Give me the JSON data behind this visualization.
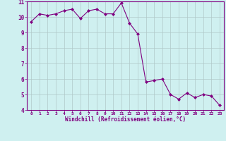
{
  "x": [
    0,
    1,
    2,
    3,
    4,
    5,
    6,
    7,
    8,
    9,
    10,
    11,
    12,
    13,
    14,
    15,
    16,
    17,
    18,
    19,
    20,
    21,
    22,
    23
  ],
  "y": [
    9.7,
    10.2,
    10.1,
    10.2,
    10.4,
    10.5,
    9.9,
    10.4,
    10.5,
    10.2,
    10.2,
    10.9,
    9.6,
    8.9,
    5.8,
    5.9,
    6.0,
    5.0,
    4.7,
    5.1,
    4.8,
    5.0,
    4.9,
    4.3
  ],
  "line_color": "#800080",
  "marker": "D",
  "marker_size": 2,
  "bg_color": "#cff0f0",
  "grid_color": "#b0c8c8",
  "xlabel": "Windchill (Refroidissement éolien,°C)",
  "xlim": [
    -0.5,
    23.5
  ],
  "ylim": [
    4,
    11
  ],
  "yticks": [
    4,
    5,
    6,
    7,
    8,
    9,
    10,
    11
  ],
  "xticks": [
    0,
    1,
    2,
    3,
    4,
    5,
    6,
    7,
    8,
    9,
    10,
    11,
    12,
    13,
    14,
    15,
    16,
    17,
    18,
    19,
    20,
    21,
    22,
    23
  ],
  "axis_label_color": "#800080",
  "tick_label_color": "#800080",
  "spine_color": "#800080",
  "bottom_bar_color": "#7040a0"
}
